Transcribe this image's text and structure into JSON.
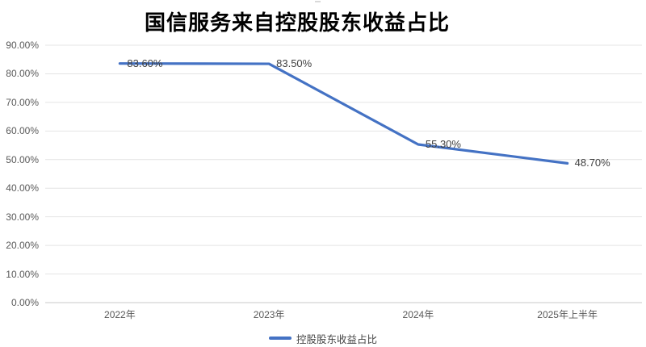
{
  "chart": {
    "title": "国信服务来自控股股东收益占比",
    "legend_label": "控股股东收益占比"
  },
  "chart_data": {
    "type": "line",
    "title": "国信服务来自控股股东收益占比",
    "categories": [
      "2022年",
      "2023年",
      "2024年",
      "2025年上半年"
    ],
    "series": [
      {
        "name": "控股股东收益占比",
        "values": [
          83.6,
          83.5,
          55.3,
          48.7
        ]
      }
    ],
    "data_labels": [
      "83.60%",
      "83.50%",
      "55.30%",
      "48.70%"
    ],
    "y_ticks": [
      "90.00%",
      "80.00%",
      "70.00%",
      "60.00%",
      "50.00%",
      "40.00%",
      "30.00%",
      "20.00%",
      "10.00%",
      "0.00%"
    ],
    "ylim": [
      0,
      90
    ],
    "xlabel": "",
    "ylabel": "",
    "grid": true,
    "legend_position": "bottom",
    "line_color": "#4472C4",
    "gridline_color": "#e4e4e4",
    "axis_text_color": "#595959",
    "data_label_color": "#404040"
  }
}
